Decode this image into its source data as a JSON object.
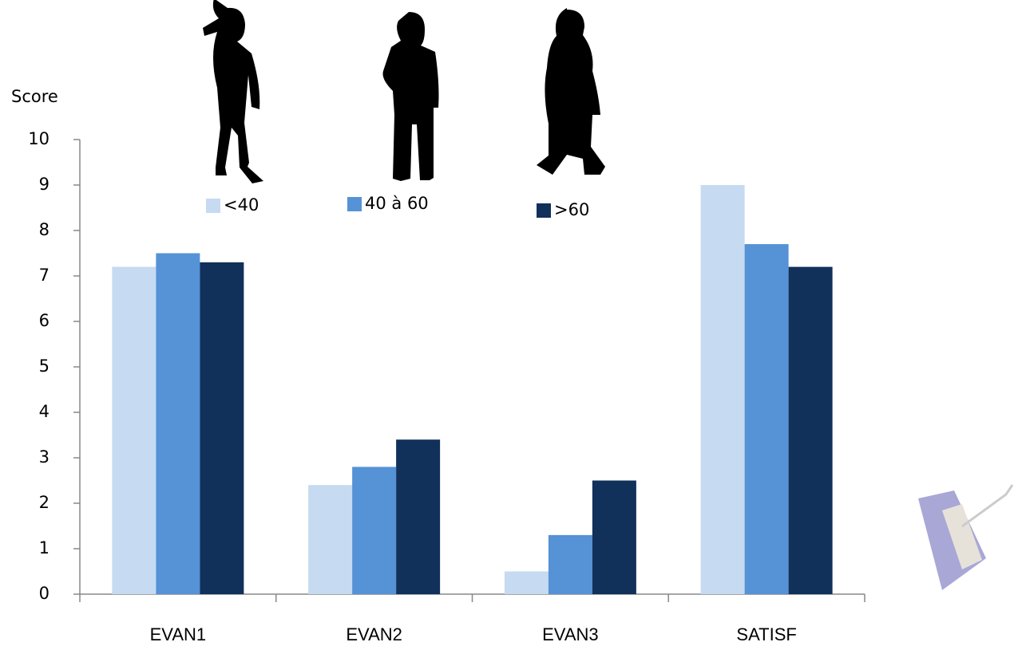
{
  "chart_data": {
    "type": "bar",
    "y_label": "Score",
    "categories": [
      "EVAN1",
      "EVAN2",
      "EVAN3",
      "SATISF"
    ],
    "series": [
      {
        "name": "<40",
        "color": "#c6daf1",
        "values": [
          7.2,
          2.4,
          0.5,
          9.0
        ]
      },
      {
        "name": "40 à 60",
        "color": "#5592d6",
        "values": [
          7.5,
          2.8,
          1.3,
          7.7
        ]
      },
      {
        "name": ">60",
        "color": "#11305a",
        "values": [
          7.3,
          3.4,
          2.5,
          7.2
        ]
      }
    ],
    "ylim": [
      0,
      10
    ],
    "yticks": [
      0,
      1,
      2,
      3,
      4,
      5,
      6,
      7,
      8,
      9,
      10
    ],
    "grid": false
  }
}
